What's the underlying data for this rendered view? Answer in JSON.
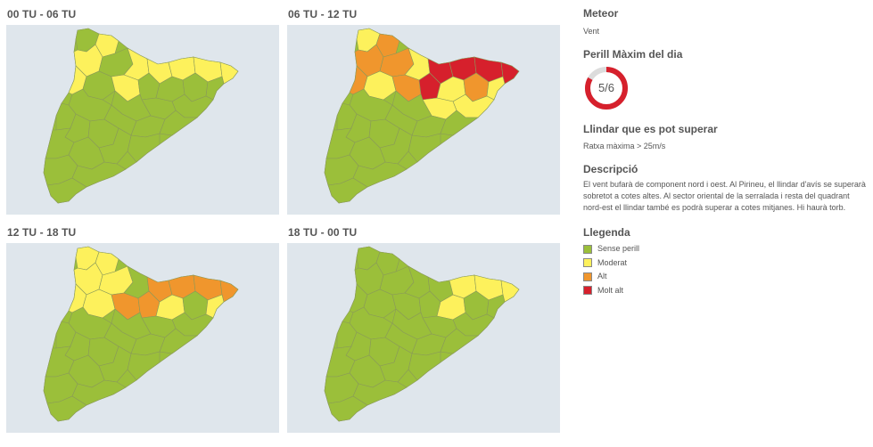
{
  "panels": [
    {
      "title": "00 TU - 06 TU"
    },
    {
      "title": "06 TU - 12 TU"
    },
    {
      "title": "12 TU - 18 TU"
    },
    {
      "title": "18 TU - 00 TU"
    }
  ],
  "sidebar": {
    "meteor_heading": "Meteor",
    "meteor_value": "Vent",
    "danger_heading": "Perill Màxim del dia",
    "danger_value": "5/6",
    "danger_fraction": 0.8333,
    "threshold_heading": "Llindar que es pot superar",
    "threshold_value": "Ratxa màxima > 25m/s",
    "description_heading": "Descripció",
    "description_text": "El vent bufarà de component nord i oest. Al Pirineu, el llindar d'avís se superarà sobretot a cotes altes. Al sector oriental de la serralada i resta del quadrant nord-est el llindar també es podrà superar a cotes mitjanes. Hi haurà torb.",
    "legend_heading": "Llegenda",
    "legend": [
      {
        "label": "Sense perill",
        "color": "#9bbf3a"
      },
      {
        "label": "Moderat",
        "color": "#fdf15c"
      },
      {
        "label": "Alt",
        "color": "#f0962d"
      },
      {
        "label": "Molt alt",
        "color": "#d6202c"
      }
    ]
  },
  "colors": {
    "map_background": "#dfe6ec",
    "gauge_red": "#d6202c",
    "gauge_track": "#dcdcdc"
  }
}
